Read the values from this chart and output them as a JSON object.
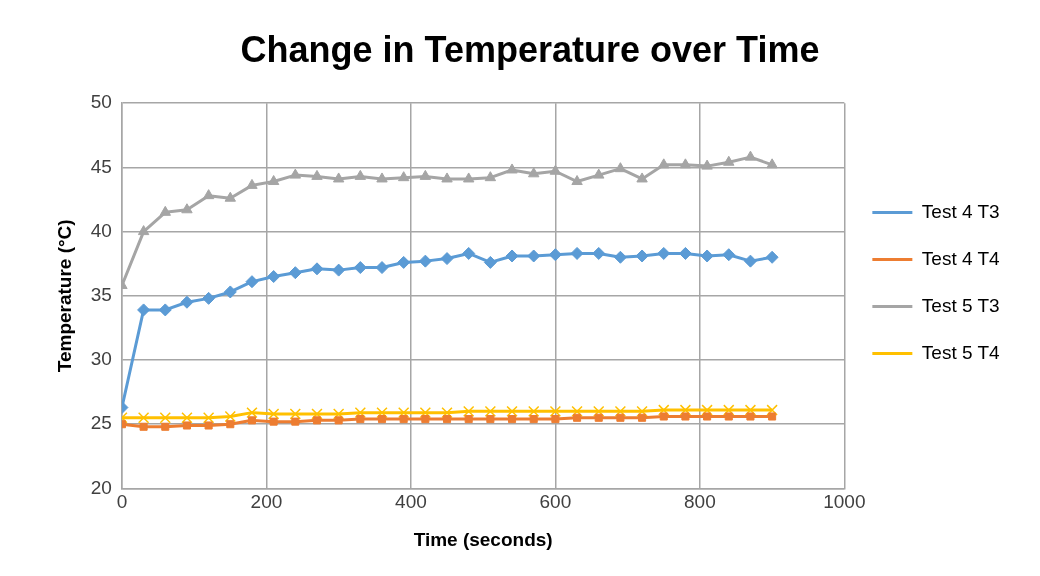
{
  "chart_data": {
    "type": "line",
    "title": "Change in Temperature over Time",
    "xlabel": "Time (seconds)",
    "ylabel": "Temperature (°C)",
    "x": [
      0,
      30,
      60,
      90,
      120,
      150,
      180,
      210,
      240,
      270,
      300,
      330,
      360,
      390,
      420,
      450,
      480,
      510,
      540,
      570,
      600,
      630,
      660,
      690,
      720,
      750,
      780,
      810,
      840,
      870,
      900
    ],
    "xlim": [
      0,
      1000
    ],
    "xticks": [
      0,
      200,
      400,
      600,
      800,
      1000
    ],
    "ylim": [
      20,
      50
    ],
    "yticks": [
      20,
      25,
      30,
      35,
      40,
      45,
      50
    ],
    "grid": true,
    "legend": "right",
    "series": [
      {
        "name": "Test 4 T3",
        "color": "#5b9bd5",
        "marker": "diamond",
        "values": [
          26.3,
          33.9,
          33.9,
          34.5,
          34.8,
          35.3,
          36.1,
          36.5,
          36.8,
          37.1,
          37.0,
          37.2,
          37.2,
          37.6,
          37.7,
          37.9,
          38.3,
          37.6,
          38.1,
          38.1,
          38.2,
          38.3,
          38.3,
          38.0,
          38.1,
          38.3,
          38.3,
          38.1,
          38.2,
          37.7,
          38.0
        ]
      },
      {
        "name": "Test 4 T4",
        "color": "#ed7d31",
        "marker": "square",
        "values": [
          25.0,
          24.8,
          24.8,
          24.9,
          24.9,
          25.0,
          25.3,
          25.2,
          25.2,
          25.3,
          25.3,
          25.4,
          25.4,
          25.4,
          25.4,
          25.4,
          25.4,
          25.4,
          25.4,
          25.4,
          25.4,
          25.5,
          25.5,
          25.5,
          25.5,
          25.6,
          25.6,
          25.6,
          25.6,
          25.6,
          25.6
        ]
      },
      {
        "name": "Test 5 T3",
        "color": "#a5a5a5",
        "marker": "triangle",
        "values": [
          35.8,
          40.0,
          41.5,
          41.7,
          42.8,
          42.6,
          43.6,
          43.9,
          44.4,
          44.3,
          44.1,
          44.3,
          44.1,
          44.2,
          44.3,
          44.1,
          44.1,
          44.2,
          44.8,
          44.5,
          44.7,
          43.9,
          44.4,
          44.9,
          44.1,
          45.2,
          45.2,
          45.1,
          45.4,
          45.8,
          45.2
        ]
      },
      {
        "name": "Test 5 T4",
        "color": "#ffc000",
        "marker": "cross",
        "values": [
          25.5,
          25.5,
          25.5,
          25.5,
          25.5,
          25.6,
          25.9,
          25.8,
          25.8,
          25.8,
          25.8,
          25.9,
          25.9,
          25.9,
          25.9,
          25.9,
          26.0,
          26.0,
          26.0,
          26.0,
          26.0,
          26.0,
          26.0,
          26.0,
          26.0,
          26.1,
          26.1,
          26.1,
          26.1,
          26.1,
          26.1
        ]
      }
    ]
  }
}
